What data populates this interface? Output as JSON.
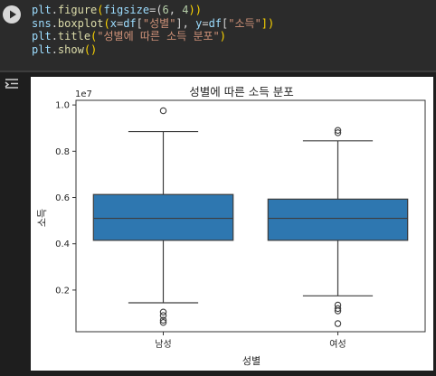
{
  "code_cell": {
    "lines": [
      [
        {
          "t": "plt",
          "c": "var"
        },
        {
          "t": ".",
          "c": "punc"
        },
        {
          "t": "figure",
          "c": "fn"
        },
        {
          "t": "(",
          "c": "paren"
        },
        {
          "t": "figsize",
          "c": "var"
        },
        {
          "t": "=(",
          "c": "punc"
        },
        {
          "t": "6",
          "c": "num"
        },
        {
          "t": ", ",
          "c": "punc"
        },
        {
          "t": "4",
          "c": "num"
        },
        {
          "t": "))",
          "c": "paren"
        }
      ],
      [
        {
          "t": "sns",
          "c": "var"
        },
        {
          "t": ".",
          "c": "punc"
        },
        {
          "t": "boxplot",
          "c": "fn"
        },
        {
          "t": "(",
          "c": "paren"
        },
        {
          "t": "x",
          "c": "var"
        },
        {
          "t": "=",
          "c": "punc"
        },
        {
          "t": "df",
          "c": "var"
        },
        {
          "t": "[",
          "c": "punc"
        },
        {
          "t": "\"성별\"",
          "c": "str"
        },
        {
          "t": "], ",
          "c": "punc"
        },
        {
          "t": "y",
          "c": "var"
        },
        {
          "t": "=",
          "c": "punc"
        },
        {
          "t": "df",
          "c": "var"
        },
        {
          "t": "[",
          "c": "punc"
        },
        {
          "t": "\"소득\"",
          "c": "str"
        },
        {
          "t": "])",
          "c": "paren"
        }
      ],
      [
        {
          "t": "plt",
          "c": "var"
        },
        {
          "t": ".",
          "c": "punc"
        },
        {
          "t": "title",
          "c": "fn"
        },
        {
          "t": "(",
          "c": "paren"
        },
        {
          "t": "\"성별에 따른 소득 분포\"",
          "c": "str"
        },
        {
          "t": ")",
          "c": "paren"
        }
      ],
      [
        {
          "t": "plt",
          "c": "var"
        },
        {
          "t": ".",
          "c": "punc"
        },
        {
          "t": "show",
          "c": "fn"
        },
        {
          "t": "()",
          "c": "paren"
        }
      ]
    ]
  },
  "icons": {
    "run": "play-icon",
    "output_toggle": "output-toggle-icon"
  },
  "chart_data": {
    "type": "box",
    "title": "성별에 따른 소득 분포",
    "xlabel": "성별",
    "ylabel": "소득",
    "y_offset_label": "1e7",
    "ylim": [
      0.02,
      1.02
    ],
    "yticks": [
      0.2,
      0.4,
      0.6,
      0.8,
      1.0
    ],
    "ytick_labels": [
      "0.2",
      "0.4",
      "0.6",
      "0.8",
      "1.0"
    ],
    "categories": [
      "남성",
      "여성"
    ],
    "box_color": "#2e77b0",
    "boxes": [
      {
        "category": "남성",
        "whisker_low": 0.145,
        "q1": 0.415,
        "median": 0.51,
        "q3": 0.613,
        "whisker_high": 0.885,
        "outliers": [
          0.975,
          0.105,
          0.09,
          0.07,
          0.06
        ]
      },
      {
        "category": "여성",
        "whisker_low": 0.175,
        "q1": 0.415,
        "median": 0.51,
        "q3": 0.593,
        "whisker_high": 0.845,
        "outliers": [
          0.89,
          0.88,
          0.135,
          0.12,
          0.11,
          0.055
        ]
      }
    ]
  }
}
